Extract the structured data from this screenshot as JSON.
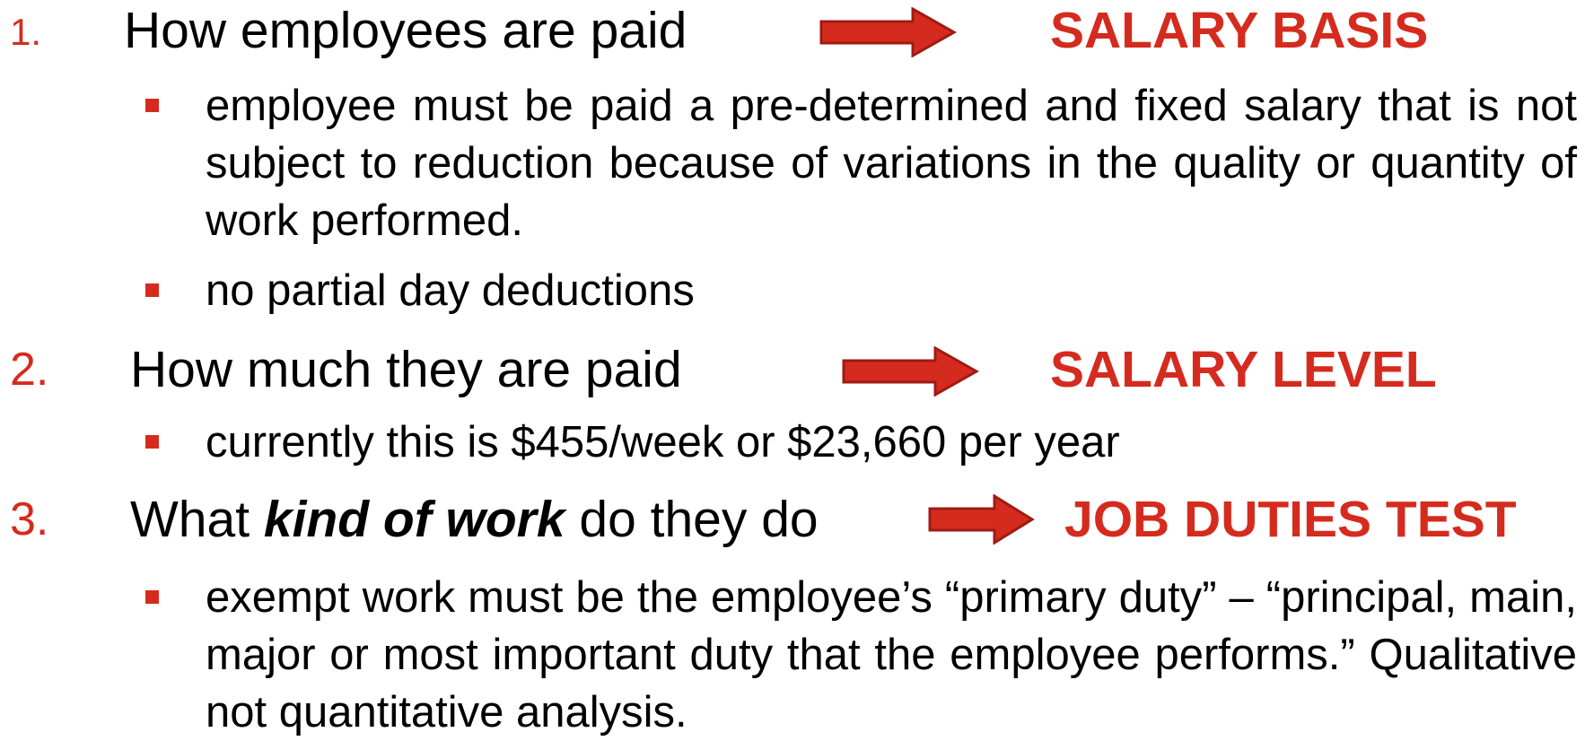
{
  "items": [
    {
      "number": "1.",
      "heading": "How employees are paid",
      "label": "SALARY BASIS",
      "bullets": [
        "employee must be paid a pre-determined and fixed salary that is not subject to reduction because of variations in the quality or quantity of work performed.",
        "no partial day deductions"
      ]
    },
    {
      "number": "2.",
      "heading": "How much they are paid",
      "label": "SALARY LEVEL",
      "bullets": [
        "currently this is $455/week or $23,660 per year"
      ]
    },
    {
      "number": "3.",
      "heading_parts": {
        "before": "What ",
        "emphasis": "kind of work",
        "after": " do they do"
      },
      "label": "JOB DUTIES TEST",
      "bullets": [
        "exempt work must be the employee’s “primary duty” – “principal, main, major or most important duty that the employee performs.” Qualitative not quantitative analysis."
      ]
    }
  ]
}
